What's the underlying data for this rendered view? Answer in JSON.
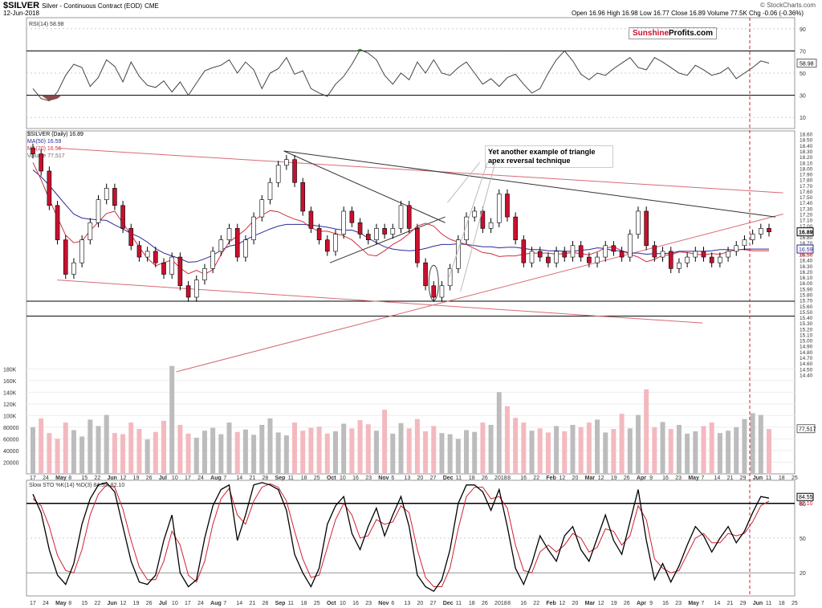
{
  "header": {
    "symbol": "$SILVER",
    "description": "Silver - Continuous Contract (EOD)",
    "exchange": "CME",
    "date": "12-Jun-2018",
    "stockcharts": "© StockCharts.com",
    "quote": "Open 16.96  High 16.98  Low 16.77  Close 16.89  Volume 77.5K  Chg -0.06 (-0.36%)"
  },
  "brand": {
    "part1": "Sunshine",
    "part2": "Profits.com"
  },
  "annotation": {
    "line1": "Yet another example of triangle",
    "line2": "apex reversal technique"
  },
  "legend": {
    "price": "$SILVER (Daily) 16.89",
    "ma50": "MA(50) 16.59",
    "ma20": "MA(20) 16.56",
    "volume": "Volume 77,517"
  },
  "badges": {
    "rsi": "58.98",
    "price": "16.89",
    "ma": "16.59",
    "ma2": "16.56",
    "vol": "77,517",
    "sto1": "84.55",
    "sto2": "82.10"
  },
  "colors": {
    "up": "#ffffff",
    "down": "#c8102e",
    "ma50": "#2b2b9a",
    "ma20": "#d0303e",
    "trend_red": "#d66a74",
    "trend_black": "#333333",
    "rsi_low_fill": "#8b4a4a",
    "rsi_high_fill": "#3a7a3a",
    "vol_up": "#bcbcbc",
    "vol_down": "#f3b9bf",
    "sto_k": "#000000",
    "sto_d": "#d02030"
  },
  "chart_data": [
    {
      "type": "line",
      "title": "RSI(14) 58.98",
      "y_ticks": [
        10,
        30,
        50,
        70,
        90
      ],
      "ylim": [
        0,
        100
      ],
      "levels": [
        30,
        70
      ],
      "values": [
        36,
        27,
        25,
        33,
        48,
        58,
        55,
        38,
        46,
        62,
        56,
        42,
        60,
        47,
        39,
        37,
        43,
        33,
        42,
        30,
        41,
        52,
        55,
        57,
        62,
        50,
        60,
        53,
        36,
        50,
        54,
        64,
        49,
        52,
        36,
        32,
        29,
        40,
        47,
        58,
        71,
        68,
        62,
        48,
        40,
        50,
        44,
        60,
        50,
        62,
        50,
        48,
        55,
        60,
        50,
        40,
        45,
        38,
        46,
        49,
        40,
        32,
        36,
        50,
        62,
        70,
        61,
        49,
        44,
        50,
        48,
        54,
        59,
        64,
        55,
        53,
        64,
        60,
        55,
        50,
        48,
        57,
        53,
        48,
        50,
        55,
        45,
        50,
        55,
        61,
        59
      ]
    },
    {
      "type": "candlestick",
      "title": "$SILVER (Daily) 16.89",
      "y_ticks": [
        14.4,
        14.5,
        14.6,
        14.7,
        14.8,
        14.9,
        15.0,
        15.1,
        15.2,
        15.3,
        15.4,
        15.5,
        15.6,
        15.7,
        15.8,
        15.9,
        16.0,
        16.1,
        16.2,
        16.3,
        16.4,
        16.5,
        16.6,
        16.7,
        16.8,
        16.9,
        17.0,
        17.1,
        17.2,
        17.3,
        17.4,
        17.5,
        17.6,
        17.7,
        17.8,
        17.9,
        18.0,
        18.1,
        18.2,
        18.3,
        18.4,
        18.5,
        18.6
      ],
      "ylim": [
        14.35,
        18.65
      ],
      "x_labels": [
        "17",
        "24",
        "May",
        "8",
        "15",
        "22",
        "Jun",
        "12",
        "19",
        "26",
        "Jul",
        "10",
        "17",
        "24",
        "Aug",
        "7",
        "14",
        "21",
        "28",
        "Sep",
        "11",
        "18",
        "25",
        "Oct",
        "10",
        "16",
        "23",
        "Nov",
        "6",
        "13",
        "20",
        "27",
        "Dec",
        "11",
        "18",
        "26",
        "2018",
        "8",
        "16",
        "22",
        "Feb",
        "12",
        "20",
        "Mar",
        "12",
        "19",
        "26",
        "Apr",
        "9",
        "16",
        "23",
        "May",
        "7",
        "14",
        "21",
        "29",
        "Jun",
        "11",
        "18",
        "25"
      ],
      "closes": [
        18.25,
        17.95,
        17.35,
        16.75,
        16.15,
        16.35,
        16.75,
        17.05,
        17.45,
        17.65,
        17.35,
        16.95,
        16.65,
        16.45,
        16.55,
        16.35,
        16.15,
        16.45,
        15.95,
        15.75,
        16.05,
        16.25,
        16.55,
        16.75,
        16.95,
        16.45,
        16.75,
        17.15,
        17.45,
        17.75,
        18.05,
        18.15,
        17.75,
        17.25,
        16.95,
        16.75,
        16.55,
        16.85,
        17.25,
        17.05,
        16.85,
        16.75,
        16.95,
        16.85,
        16.95,
        17.35,
        16.95,
        16.35,
        15.95,
        15.75,
        15.95,
        16.25,
        16.75,
        17.15,
        17.25,
        16.95,
        17.05,
        17.55,
        17.15,
        16.75,
        16.35,
        16.55,
        16.45,
        16.35,
        16.55,
        16.45,
        16.65,
        16.45,
        16.35,
        16.45,
        16.65,
        16.55,
        16.45,
        16.85,
        17.25,
        16.65,
        16.45,
        16.55,
        16.25,
        16.35,
        16.45,
        16.55,
        16.45,
        16.35,
        16.45,
        16.55,
        16.65,
        16.75,
        16.85,
        16.95,
        16.89
      ],
      "ma50": [
        17.97,
        17.85,
        17.7,
        17.53,
        17.36,
        17.2,
        17.13,
        17.11,
        17.1,
        17.09,
        17.01,
        16.94,
        16.86,
        16.8,
        16.71,
        16.6,
        16.52,
        16.47,
        16.42,
        16.36,
        16.37,
        16.42,
        16.48,
        16.57,
        16.64,
        16.67,
        16.75,
        16.82,
        16.88,
        16.94,
        16.99,
        17.02,
        17.02,
        17.02,
        17.01,
        16.99,
        16.97,
        16.94,
        16.92,
        16.92,
        16.87,
        16.78,
        16.7,
        16.63,
        16.59,
        16.57,
        16.56,
        16.57,
        16.6,
        16.64,
        16.67,
        16.67,
        16.68,
        16.67,
        16.65,
        16.63,
        16.63,
        16.61,
        16.62,
        16.62,
        16.6,
        16.58,
        16.58,
        16.56,
        16.56,
        16.55,
        16.55,
        16.57,
        16.58,
        16.61,
        16.6,
        16.56,
        16.56,
        16.52,
        16.52,
        16.5,
        16.51,
        16.51,
        16.52,
        16.55,
        16.55,
        16.55,
        16.55,
        16.56,
        16.58,
        16.58,
        16.57,
        16.59,
        16.59,
        16.59,
        16.59
      ],
      "ma20": [
        18.1,
        17.8,
        17.46,
        17.14,
        16.83,
        16.7,
        16.73,
        16.91,
        17.06,
        17.21,
        17.25,
        17.04,
        16.84,
        16.62,
        16.43,
        16.3,
        16.35,
        16.4,
        16.26,
        16.16,
        16.22,
        16.15,
        16.23,
        16.49,
        16.71,
        16.82,
        16.93,
        17.09,
        17.18,
        17.26,
        17.24,
        17.17,
        17.11,
        17.07,
        16.96,
        16.9,
        16.9,
        16.86,
        16.82,
        16.75,
        16.62,
        16.49,
        16.47,
        16.56,
        16.67,
        16.75,
        16.86,
        16.99,
        17.04,
        16.99,
        16.85,
        16.76,
        16.71,
        16.67,
        16.6,
        16.53,
        16.51,
        16.46,
        16.47,
        16.47,
        16.5,
        16.52,
        16.52,
        16.52,
        16.5,
        16.51,
        16.53,
        16.51,
        16.49,
        16.54,
        16.61,
        16.63,
        16.56,
        16.5,
        16.45,
        16.37,
        16.41,
        16.48,
        16.49,
        16.54,
        16.53,
        16.5,
        16.49,
        16.51,
        16.5,
        16.54,
        16.58,
        16.58,
        16.56,
        16.56,
        16.56
      ],
      "trendlines": [
        {
          "color": "red",
          "from": [
            0.04,
            18.35
          ],
          "to": [
            0.985,
            17.57
          ]
        },
        {
          "color": "red",
          "from": [
            0.04,
            16.05
          ],
          "to": [
            0.88,
            15.3
          ]
        },
        {
          "color": "red",
          "from": [
            0.195,
            14.45
          ],
          "to": [
            0.985,
            17.2
          ]
        },
        {
          "color": "black",
          "from": [
            0.335,
            18.3
          ],
          "to": [
            0.975,
            17.15
          ]
        },
        {
          "color": "black",
          "from": [
            0.335,
            18.3
          ],
          "to": [
            0.545,
            17.05
          ]
        },
        {
          "color": "black",
          "from": [
            0.395,
            16.35
          ],
          "to": [
            0.545,
            17.15
          ]
        }
      ],
      "horizontal_lines": [
        15.68,
        15.42
      ]
    },
    {
      "type": "bar",
      "title": "Volume 77,517",
      "y_ticks": [
        "20000",
        "40000",
        "60000",
        "80000",
        "100K",
        "120K",
        "140K",
        "160K",
        "180K"
      ],
      "values": [
        80,
        95,
        70,
        60,
        88,
        75,
        64,
        93,
        82,
        101,
        70,
        68,
        88,
        77,
        59,
        72,
        91,
        185,
        84,
        69,
        62,
        74,
        79,
        68,
        88,
        72,
        76,
        67,
        84,
        95,
        71,
        66,
        88,
        74,
        79,
        81,
        69,
        73,
        86,
        78,
        92,
        85,
        74,
        110,
        69,
        87,
        78,
        94,
        73,
        82,
        70,
        68,
        60,
        75,
        72,
        88,
        84,
        140,
        116,
        96,
        88,
        74,
        78,
        71,
        82,
        73,
        84,
        80,
        88,
        93,
        71,
        77,
        103,
        78,
        101,
        145,
        80,
        89,
        77,
        84,
        69,
        73,
        82,
        88,
        70,
        74,
        80,
        94,
        104,
        101,
        77
      ]
    },
    {
      "type": "line",
      "title": "Slow STO %K(14) %D(3) 84.55, 82.10",
      "y_ticks": [
        20,
        50,
        80
      ],
      "ylim": [
        0,
        100
      ],
      "levels": [
        20,
        80
      ],
      "series": [
        {
          "name": "%K",
          "values": [
            88,
            72,
            40,
            18,
            10,
            28,
            62,
            84,
            96,
            98,
            90,
            60,
            30,
            12,
            10,
            18,
            48,
            70,
            20,
            8,
            14,
            50,
            78,
            92,
            96,
            48,
            70,
            96,
            98,
            96,
            92,
            74,
            36,
            20,
            8,
            24,
            62,
            78,
            86,
            54,
            40,
            60,
            76,
            52,
            70,
            86,
            60,
            18,
            8,
            4,
            14,
            40,
            80,
            96,
            96,
            90,
            74,
            92,
            60,
            24,
            10,
            28,
            52,
            40,
            30,
            52,
            60,
            40,
            30,
            50,
            70,
            48,
            36,
            64,
            92,
            48,
            14,
            28,
            12,
            26,
            44,
            60,
            52,
            38,
            50,
            60,
            46,
            56,
            72,
            86,
            84.55
          ]
        },
        {
          "name": "%D",
          "values": [
            84,
            78,
            60,
            35,
            22,
            20,
            40,
            70,
            88,
            96,
            94,
            75,
            48,
            25,
            14,
            14,
            30,
            56,
            44,
            18,
            12,
            30,
            62,
            84,
            93,
            70,
            62,
            82,
            94,
            97,
            94,
            82,
            56,
            32,
            16,
            18,
            42,
            66,
            80,
            70,
            50,
            52,
            66,
            62,
            64,
            78,
            72,
            40,
            16,
            8,
            8,
            24,
            58,
            86,
            94,
            94,
            84,
            86,
            76,
            44,
            22,
            20,
            38,
            44,
            38,
            44,
            54,
            50,
            38,
            42,
            58,
            56,
            44,
            52,
            78,
            66,
            32,
            24,
            20,
            22,
            36,
            50,
            54,
            46,
            46,
            54,
            52,
            54,
            64,
            78,
            82.1
          ]
        }
      ]
    }
  ]
}
